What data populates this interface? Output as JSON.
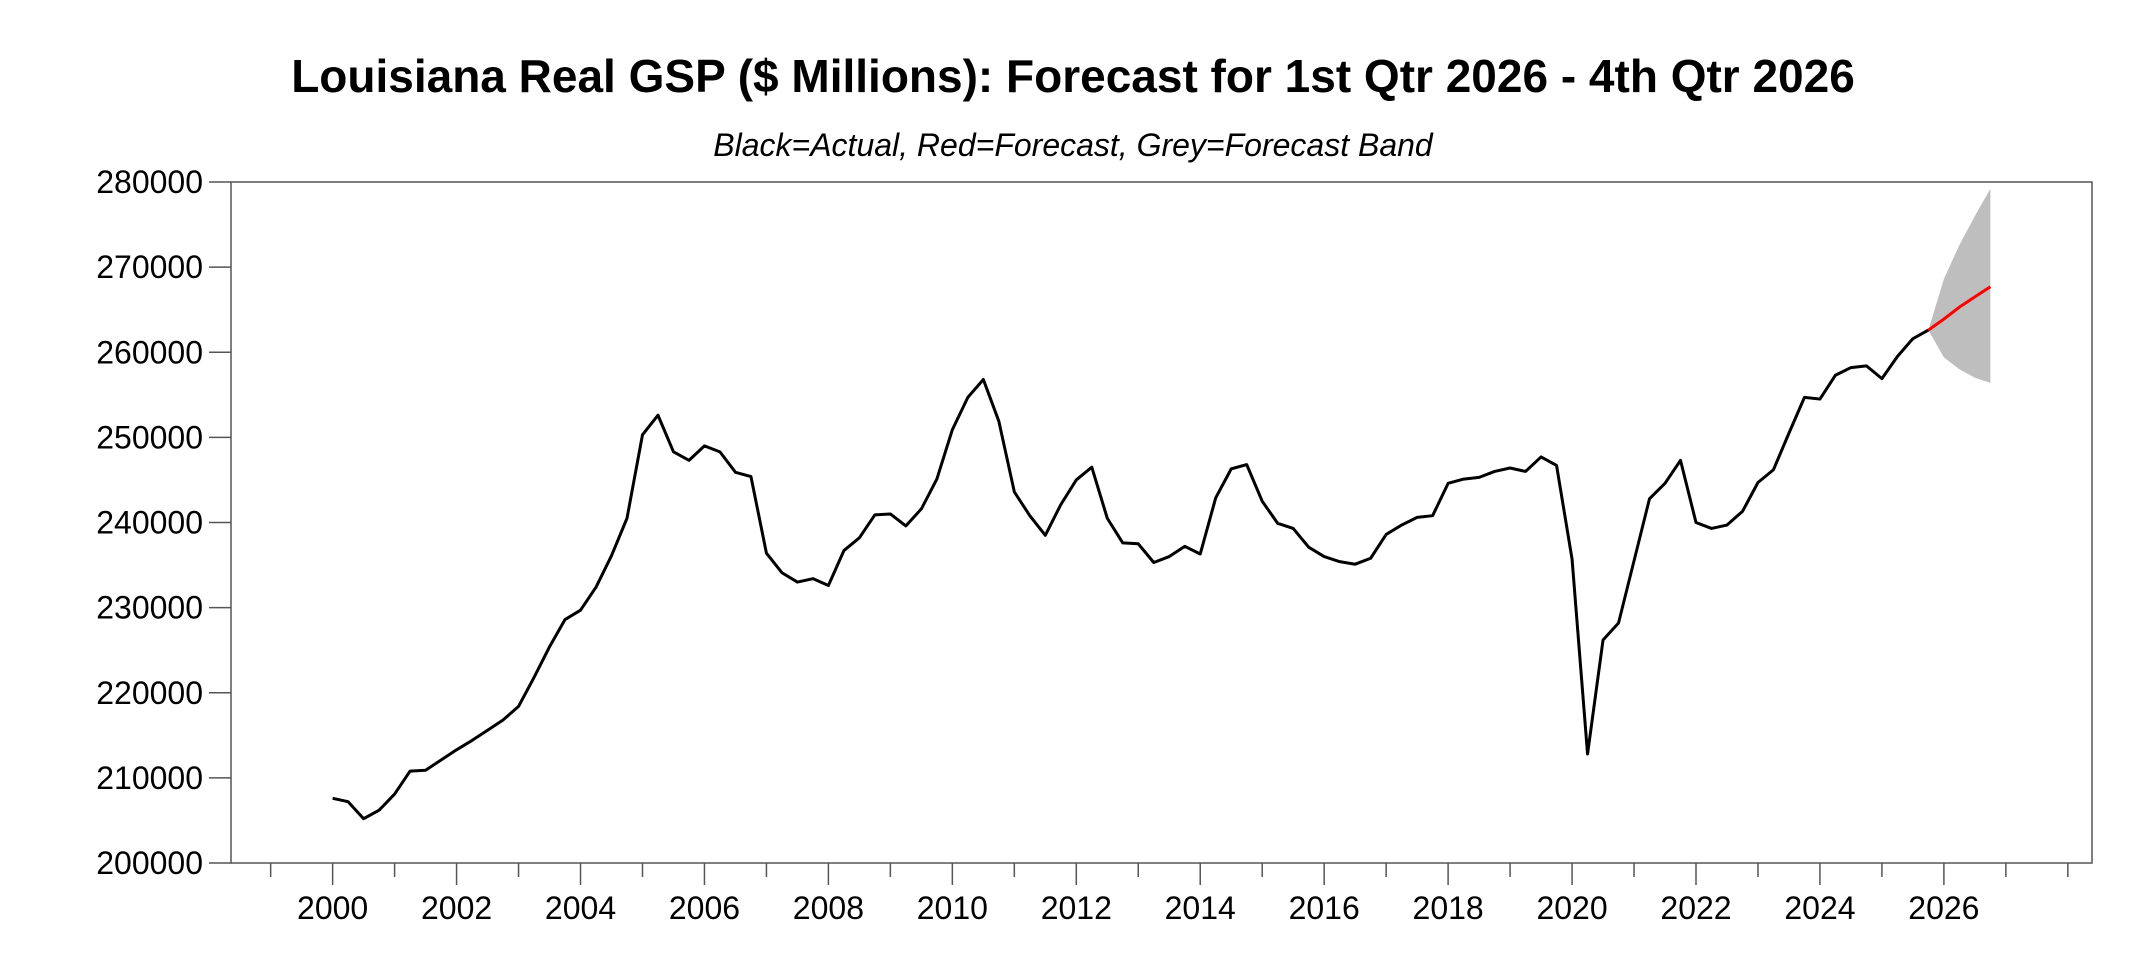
{
  "chart_data": {
    "type": "line",
    "title": "Louisiana Real GSP ($ Millions): Forecast for 1st Qtr 2026 - 4th Qtr 2026",
    "subtitle": "Black=Actual, Red=Forecast, Grey=Forecast Band",
    "xlabel": "",
    "ylabel": "",
    "ylim": [
      200000,
      280000
    ],
    "xlim": [
      1998.36,
      2028.39
    ],
    "yticks": [
      "200000",
      "210000",
      "220000",
      "230000",
      "240000",
      "250000",
      "260000",
      "270000",
      "280000"
    ],
    "xticks": [
      "2000",
      "2002",
      "2004",
      "2006",
      "2008",
      "2010",
      "2012",
      "2014",
      "2016",
      "2018",
      "2020",
      "2022",
      "2024",
      "2026"
    ],
    "grid": false,
    "frequency": "quarterly",
    "colors": {
      "actual": "#000000",
      "forecast": "#ff0000",
      "band": "#bebebe"
    },
    "series": [
      {
        "name": "Actual",
        "start": "2000Q1",
        "values": [
          207600,
          207200,
          205200,
          206200,
          208100,
          210800,
          210900,
          212100,
          213300,
          214400,
          215600,
          216800,
          218400,
          221800,
          225400,
          228600,
          229700,
          232400,
          236100,
          240500,
          250300,
          252600,
          248300,
          247300,
          249000,
          248300,
          245900,
          245400,
          236400,
          234100,
          233000,
          233400,
          232600,
          236700,
          238200,
          240900,
          241000,
          239600,
          241600,
          245100,
          250900,
          254700,
          256800,
          251900,
          243600,
          240800,
          238500,
          242100,
          245000,
          246500,
          240500,
          237600,
          237500,
          235300,
          236000,
          237200,
          236300,
          242900,
          246300,
          246800,
          242500,
          239900,
          239300,
          237100,
          236000,
          235400,
          235100,
          235800,
          238600,
          239700,
          240600,
          240800,
          244600,
          245100,
          245300,
          246000,
          246400,
          246000,
          247700,
          246700,
          235700,
          212800,
          226200,
          228200,
          235500,
          242800,
          244600,
          247300,
          240000,
          239300,
          239700,
          241300,
          244700,
          246200,
          250500,
          254700,
          254500,
          257300,
          258200,
          258400,
          256900,
          259500,
          261600,
          262600
        ]
      },
      {
        "name": "Forecast",
        "start": "2026Q1",
        "values": [
          263900,
          265300,
          266500,
          267700
        ]
      },
      {
        "name": "Forecast Band",
        "start": "2026Q1",
        "upper": [
          268600,
          272600,
          276000,
          279200
        ],
        "lower": [
          259400,
          258000,
          257000,
          256400
        ]
      }
    ]
  }
}
